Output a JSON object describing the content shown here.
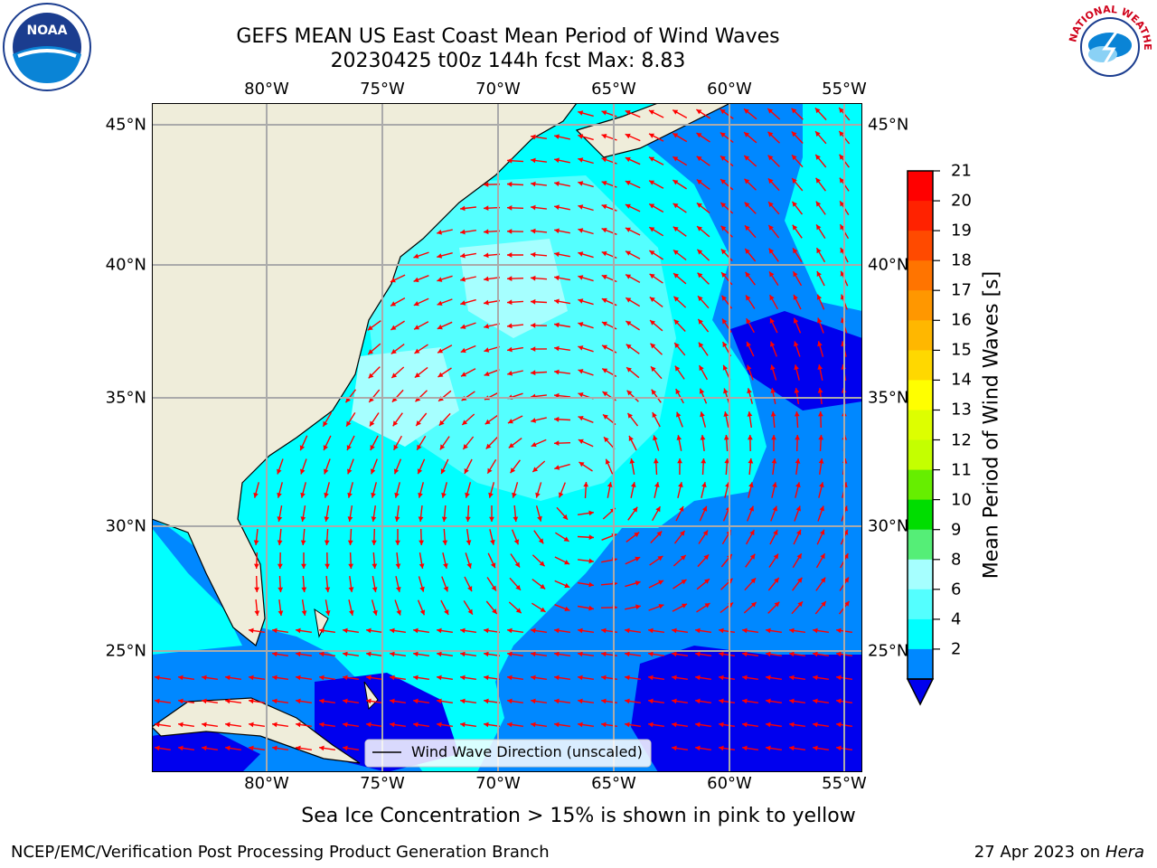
{
  "title_line1": "GEFS MEAN US East Coast Mean Period of Wind Waves",
  "title_line2": "20230425 t00z 144h fcst   Max: 8.83",
  "lon_ticks": [
    "80°W",
    "75°W",
    "70°W",
    "65°W",
    "60°W",
    "55°W"
  ],
  "lat_ticks": [
    "45°N",
    "40°N",
    "35°N",
    "30°N",
    "25°N"
  ],
  "legend_label": "Wind Wave Direction (unscaled)",
  "colorbar": {
    "label": "Mean Period of Wind Waves [s]",
    "ticks": [
      "21",
      "20",
      "19",
      "18",
      "17",
      "16",
      "15",
      "14",
      "13",
      "12",
      "11",
      "10",
      "9",
      "8",
      "6",
      "4",
      "2"
    ],
    "colors": [
      "#ff0000",
      "#ff2200",
      "#ff4a00",
      "#ff7400",
      "#ff9700",
      "#ffb700",
      "#ffd800",
      "#ffff00",
      "#ddff00",
      "#c4ff00",
      "#66ee00",
      "#00dd00",
      "#55ee77",
      "#a6ffff",
      "#54ffff",
      "#00ffff",
      "#0088ff"
    ],
    "under_color": "#0000ee"
  },
  "map_colors": {
    "land": "#efedda",
    "period_2_4": "#0088ff",
    "period_4_6": "#00ffff",
    "period_6_8": "#54ffff",
    "period_8_9": "#a6ffff",
    "below_2": "#0000ee",
    "arrow": "#ff0000"
  },
  "subtitle": "Sea Ice Concentration > 15% is shown in pink to yellow",
  "footer_left": "NCEP/EMC/Verification Post Processing Product Generation Branch",
  "footer_date": "27 Apr 2023 on ",
  "footer_machine": "Hera",
  "logo_left_text": "NOAA",
  "logo_right_text": "NATIONAL WEATHER SERVICE"
}
